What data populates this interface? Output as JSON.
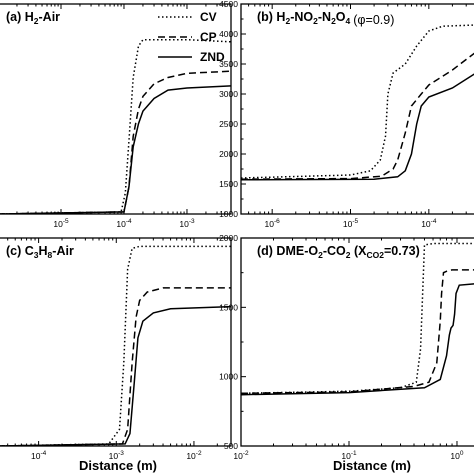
{
  "chart_data": [
    {
      "type": "line",
      "panel_label": "(a) H",
      "species": [
        "2",
        "-Air"
      ],
      "x_scale": "log",
      "xlim": [
        1e-06,
        0.005
      ],
      "x_ticks": [
        {
          "value": 1e-05,
          "mant": "10",
          "exp": "-5"
        },
        {
          "value": 0.0001,
          "mant": "10",
          "exp": "-4"
        },
        {
          "value": 0.001,
          "mant": "10",
          "exp": "-3"
        }
      ],
      "y_ticks": [],
      "ylim": [
        0,
        1
      ],
      "series": [
        {
          "name": "CV",
          "dash": "dotted",
          "x": [
            1e-06,
            9e-05,
            0.000105,
            0.00012,
            0.00014,
            0.00017,
            0.0002,
            0.0003,
            0.001,
            0.005
          ],
          "y": [
            0.0,
            0.01,
            0.1,
            0.35,
            0.65,
            0.8,
            0.83,
            0.83,
            0.83,
            0.82
          ]
        },
        {
          "name": "CP",
          "dash": "dashed",
          "x": [
            1e-06,
            0.0001,
            0.00012,
            0.00014,
            0.00017,
            0.0002,
            0.0003,
            0.0005,
            0.001,
            0.005
          ],
          "y": [
            0.0,
            0.01,
            0.13,
            0.37,
            0.5,
            0.56,
            0.62,
            0.65,
            0.67,
            0.68
          ]
        },
        {
          "name": "ZND",
          "dash": "solid",
          "x": [
            1e-06,
            0.0001,
            0.00012,
            0.00014,
            0.00017,
            0.0002,
            0.0003,
            0.0005,
            0.001,
            0.005
          ],
          "y": [
            0.0,
            0.01,
            0.13,
            0.32,
            0.43,
            0.49,
            0.55,
            0.59,
            0.6,
            0.61
          ]
        }
      ]
    },
    {
      "type": "line",
      "panel_label": "(b) H",
      "species": [
        "2",
        "-NO",
        "2",
        "-N",
        "2",
        "O",
        "4"
      ],
      "phi_text": "(φ=0.9)",
      "x_scale": "log",
      "xlim": [
        4e-07,
        0.0004
      ],
      "x_ticks": [
        {
          "value": 1e-06,
          "mant": "10",
          "exp": "-6"
        },
        {
          "value": 1e-05,
          "mant": "10",
          "exp": "-5"
        },
        {
          "value": 0.0001,
          "mant": "10",
          "exp": "-4"
        }
      ],
      "ylim": [
        1000,
        4500
      ],
      "y_ticks": [
        1000,
        1500,
        2000,
        2500,
        3000,
        3500,
        4000,
        4500
      ],
      "series": [
        {
          "name": "CV",
          "dash": "dotted",
          "x": [
            4e-07,
            1e-05,
            1.8e-05,
            2.4e-05,
            2.8e-05,
            3e-05,
            3.5e-05,
            5e-05,
            7e-05,
            0.0001,
            0.00015,
            0.0004
          ],
          "y": [
            1600,
            1650,
            1720,
            1900,
            2300,
            3000,
            3350,
            3500,
            3800,
            4050,
            4130,
            4150
          ]
        },
        {
          "name": "CP",
          "dash": "dashed",
          "x": [
            4e-07,
            1e-05,
            2.5e-05,
            3.5e-05,
            4e-05,
            5e-05,
            6e-05,
            8e-05,
            0.0001,
            0.0002,
            0.0004
          ],
          "y": [
            1580,
            1590,
            1630,
            1750,
            1900,
            2350,
            2800,
            3000,
            3150,
            3400,
            3700
          ]
        },
        {
          "name": "ZND",
          "dash": "solid",
          "x": [
            4e-07,
            2e-05,
            4e-05,
            5e-05,
            6e-05,
            7e-05,
            8e-05,
            0.0001,
            0.0002,
            0.0004
          ],
          "y": [
            1570,
            1580,
            1620,
            1720,
            2000,
            2500,
            2800,
            2950,
            3100,
            3350
          ]
        }
      ]
    },
    {
      "type": "line",
      "panel_label": "(c) C",
      "species": [
        "3",
        "H",
        "8",
        "-Air"
      ],
      "x_scale": "log",
      "xlim": [
        3e-05,
        0.03
      ],
      "x_ticks": [
        {
          "value": 0.0001,
          "mant": "10",
          "exp": "-4"
        },
        {
          "value": 0.001,
          "mant": "10",
          "exp": "-3"
        },
        {
          "value": 0.01,
          "mant": "10",
          "exp": "-2"
        }
      ],
      "y_ticks": [],
      "ylim": [
        0,
        1
      ],
      "series": [
        {
          "name": "CV",
          "dash": "dotted",
          "x": [
            3e-05,
            0.0008,
            0.0011,
            0.00125,
            0.0014,
            0.0016,
            0.002,
            0.03
          ],
          "y": [
            0.0,
            0.01,
            0.08,
            0.4,
            0.85,
            0.95,
            0.96,
            0.96
          ]
        },
        {
          "name": "CP",
          "dash": "dashed",
          "x": [
            3e-05,
            0.0012,
            0.0014,
            0.0016,
            0.0018,
            0.002,
            0.0025,
            0.004,
            0.03
          ],
          "y": [
            0.0,
            0.01,
            0.08,
            0.4,
            0.62,
            0.7,
            0.74,
            0.76,
            0.76
          ]
        },
        {
          "name": "ZND",
          "dash": "solid",
          "x": [
            3e-05,
            0.0013,
            0.0015,
            0.0017,
            0.0019,
            0.0022,
            0.003,
            0.005,
            0.03
          ],
          "y": [
            0.0,
            0.01,
            0.06,
            0.3,
            0.52,
            0.6,
            0.64,
            0.66,
            0.67
          ]
        }
      ]
    },
    {
      "type": "line",
      "panel_label": "(d) DME-O",
      "species": [
        "2",
        "-CO",
        "2",
        " (X",
        "CO2",
        "=0.73)"
      ],
      "x_scale": "log",
      "xlim": [
        0.01,
        1.5
      ],
      "x_ticks": [
        {
          "value": 0.01,
          "mant": "10",
          "exp": "-2"
        },
        {
          "value": 0.1,
          "mant": "10",
          "exp": "-1"
        },
        {
          "value": 1,
          "mant": "10",
          "exp": "0"
        }
      ],
      "ylim": [
        500,
        2000
      ],
      "y_ticks": [
        500,
        1000,
        1500,
        2000
      ],
      "series": [
        {
          "name": "CV",
          "dash": "dotted",
          "x": [
            0.01,
            0.1,
            0.3,
            0.42,
            0.46,
            0.5,
            0.6,
            1.5
          ],
          "y": [
            880,
            895,
            920,
            960,
            1200,
            1950,
            1960,
            1960
          ]
        },
        {
          "name": "CP",
          "dash": "dashed",
          "x": [
            0.01,
            0.1,
            0.4,
            0.55,
            0.65,
            0.7,
            0.72,
            0.75,
            0.8,
            0.9,
            1.5
          ],
          "y": [
            880,
            890,
            930,
            960,
            1100,
            1400,
            1600,
            1750,
            1760,
            1770,
            1770
          ]
        },
        {
          "name": "ZND",
          "dash": "solid",
          "x": [
            0.01,
            0.1,
            0.5,
            0.7,
            0.8,
            0.85,
            0.88,
            0.92,
            0.95,
            0.98,
            1.05,
            1.5
          ],
          "y": [
            870,
            885,
            920,
            980,
            1150,
            1300,
            1350,
            1370,
            1450,
            1600,
            1660,
            1670
          ]
        }
      ]
    }
  ],
  "legend": {
    "entries": [
      {
        "label": "CV",
        "dash": "dotted"
      },
      {
        "label": "CP",
        "dash": "dashed"
      },
      {
        "label": "ZND",
        "dash": "solid"
      }
    ]
  },
  "x_axis_label": "Distance (m)"
}
